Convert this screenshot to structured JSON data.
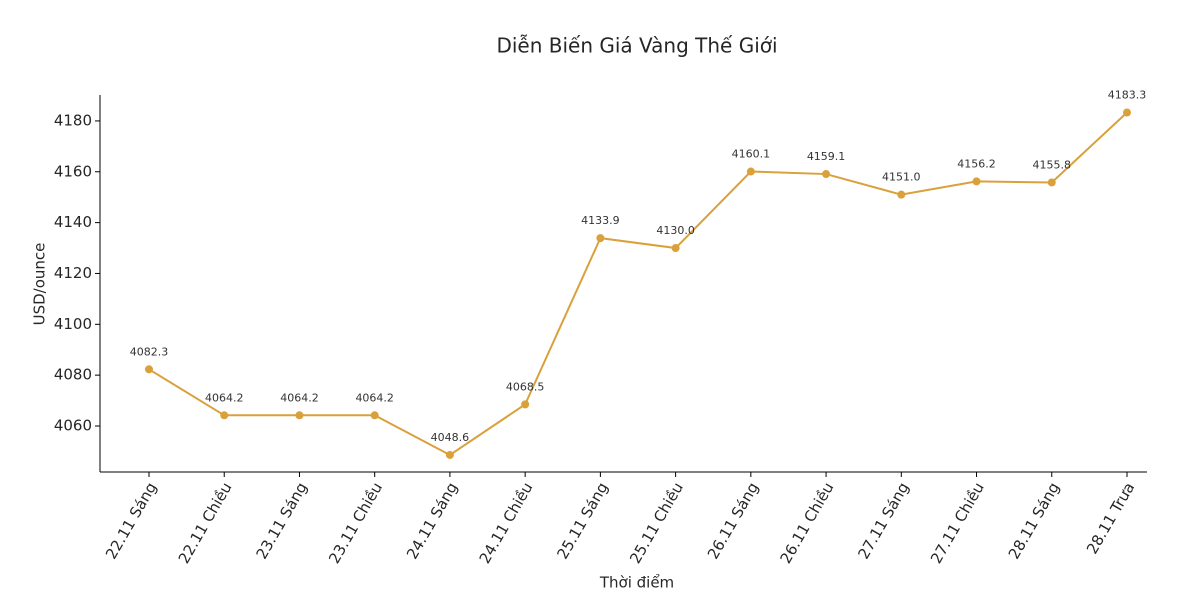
{
  "chart_data": {
    "type": "line",
    "title": "Diễn Biến Giá Vàng Thế Giới",
    "x_label": "Thời điểm",
    "y_label": "USD/ounce",
    "categories": [
      "22.11 Sáng",
      "22.11 Chiều",
      "23.11 Sáng",
      "23.11 Chiều",
      "24.11 Sáng",
      "24.11 Chiều",
      "25.11 Sáng",
      "25.11 Chiều",
      "26.11 Sáng",
      "26.11 Chiều",
      "27.11 Sáng",
      "27.11 Chiều",
      "28.11 Sáng",
      "28.11 Trưa"
    ],
    "values": [
      4082.3,
      4064.2,
      4064.2,
      4064.2,
      4048.6,
      4068.5,
      4133.9,
      4130.0,
      4160.1,
      4159.1,
      4151.0,
      4156.2,
      4155.8,
      4183.3
    ],
    "value_labels": [
      "4082.3",
      "4064.2",
      "4064.2",
      "4064.2",
      "4048.6",
      "4068.5",
      "4133.9",
      "4130.0",
      "4160.1",
      "4159.1",
      "4151.0",
      "4156.2",
      "4155.8",
      "4183.3"
    ],
    "color": "#daa03a",
    "ylim": [
      4041.9,
      4190.2
    ],
    "yticks": [
      4060,
      4080,
      4100,
      4120,
      4140,
      4160,
      4180
    ],
    "grid": false
  }
}
